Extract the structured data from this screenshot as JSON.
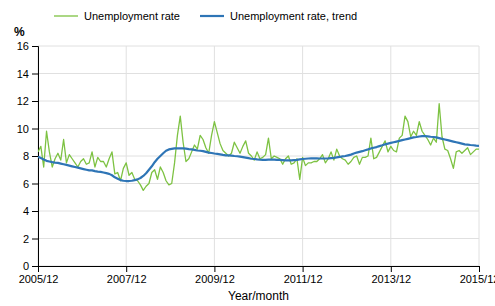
{
  "chart_data": {
    "type": "line",
    "xlabel": "Year/month",
    "ylabel": "%",
    "x": [
      0,
      0.7742,
      1.5484,
      2.3226,
      3.0968,
      3.871,
      4.6452,
      5.4194,
      6.1935,
      6.9677,
      7.7419,
      8.5161,
      9.2903,
      10.0645,
      10.8387,
      11.6129,
      12.3871,
      13.1613,
      13.9355,
      14.7097,
      15.4839,
      16.2581,
      17.0323,
      17.8065,
      18.5806,
      19.3548,
      20.129,
      20.9032,
      21.6774,
      22.4516,
      23.2258,
      24,
      24.7742,
      25.5484,
      26.3226,
      27.0968,
      27.871,
      28.6452,
      29.4194,
      30.1935,
      30.9677,
      31.7419,
      32.5161,
      33.2903,
      34.0645,
      34.8387,
      35.6129,
      36.3871,
      37.1613,
      37.9355,
      38.7097,
      39.4839,
      40.2581,
      41.0323,
      41.8065,
      42.5806,
      43.3548,
      44.129,
      44.9032,
      45.6774,
      46.4516,
      47.2258,
      48,
      48.7742,
      49.5484,
      50.3226,
      51.0968,
      51.871,
      52.6452,
      53.4194,
      54.1935,
      54.9677,
      55.7419,
      56.5161,
      57.2903,
      58.0645,
      58.8387,
      59.6129,
      60.3871,
      61.1613,
      61.9355,
      62.7097,
      63.4839,
      64.2581,
      65.0323,
      65.8065,
      66.5806,
      67.3548,
      68.129,
      68.9032,
      69.6774,
      70.4516,
      71.2258,
      72,
      72.7742,
      73.5484,
      74.3226,
      75.0968,
      75.871,
      76.6452,
      77.4194,
      78.1935,
      78.9677,
      79.7419,
      80.5161,
      81.2903,
      82.0645,
      82.8387,
      83.6129,
      84.3871,
      85.1613,
      85.9355,
      86.7097,
      87.4839,
      88.2581,
      89.0323,
      89.8065,
      90.5806,
      91.3548,
      92.129,
      92.9032,
      93.6774,
      94.4516,
      95.2258,
      96,
      96.7742,
      97.5484,
      98.3226,
      99.0968,
      99.871,
      100.6452,
      101.4194,
      102.1935,
      102.9677,
      103.7419,
      104.5161,
      105.2903,
      106.0645,
      106.8387,
      107.6129,
      108.3871,
      109.1613,
      109.9355,
      110.7097,
      111.4839,
      112.2581,
      113.0323,
      113.8065,
      114.5806,
      115.3548,
      116.129,
      116.9032,
      117.6774,
      118.4516,
      119.2258,
      120
    ],
    "xlim": [
      0,
      120
    ],
    "xticks": [
      {
        "value": 0,
        "label": "2005/12"
      },
      {
        "value": 24,
        "label": "2007/12"
      },
      {
        "value": 48,
        "label": "2009/12"
      },
      {
        "value": 72,
        "label": "2011/12"
      },
      {
        "value": 96,
        "label": "2013/12"
      },
      {
        "value": 120,
        "label": "2015/12"
      }
    ],
    "ylim": [
      0,
      16
    ],
    "yticks": [
      0,
      2,
      4,
      6,
      8,
      10,
      12,
      14,
      16
    ],
    "grid": true,
    "legend": "top",
    "series": [
      {
        "name": "Unemployment rate",
        "color": "#7dc242",
        "values": [
          8.3,
          8.7,
          7.2,
          9.8,
          8.3,
          7.2,
          7.8,
          8.2,
          7.7,
          9.2,
          7.5,
          8.1,
          7.8,
          7.5,
          7.2,
          7.6,
          7.8,
          7.4,
          7.5,
          8.3,
          7.2,
          7.9,
          7.6,
          7.6,
          7.2,
          7.8,
          8.3,
          6.7,
          6.8,
          6.2,
          7.1,
          7.5,
          6.6,
          6.8,
          6.3,
          6.2,
          5.9,
          5.5,
          5.8,
          6.0,
          6.8,
          7.0,
          6.3,
          7.2,
          6.8,
          6.2,
          5.9,
          6.0,
          7.5,
          9.5,
          10.9,
          9.0,
          7.6,
          7.8,
          8.3,
          8.8,
          8.5,
          9.5,
          9.2,
          8.6,
          8.2,
          9.5,
          10.5,
          9.7,
          8.9,
          8.4,
          8.2,
          8.0,
          8.2,
          9.0,
          8.6,
          8.2,
          8.7,
          9.1,
          8.2,
          8.0,
          7.7,
          8.3,
          7.8,
          7.9,
          8.1,
          9.3,
          7.8,
          8.0,
          7.9,
          7.8,
          7.4,
          7.8,
          8.0,
          7.4,
          7.5,
          7.8,
          6.3,
          7.9,
          7.3,
          7.5,
          7.5,
          7.6,
          7.6,
          7.8,
          8.1,
          7.5,
          7.8,
          8.3,
          7.7,
          8.5,
          8.0,
          7.8,
          7.7,
          7.4,
          7.6,
          7.9,
          8.0,
          7.4,
          7.9,
          7.9,
          8.0,
          9.3,
          7.8,
          7.9,
          8.3,
          8.7,
          9.1,
          8.3,
          8.7,
          8.4,
          8.3,
          9.3,
          9.5,
          10.9,
          10.5,
          9.4,
          9.8,
          9.5,
          10.5,
          9.8,
          9.5,
          9.2,
          8.8,
          9.3,
          9.0,
          11.8,
          9.4,
          8.5,
          8.4,
          7.8,
          7.1,
          8.3,
          8.4,
          8.2,
          8.4,
          8.6,
          8.1,
          8.3,
          8.5,
          8.5
        ]
      },
      {
        "name": "Unemployment rate, trend",
        "color": "#2e75b6",
        "values": [
          7.95,
          7.85,
          7.75,
          7.65,
          7.6,
          7.55,
          7.52,
          7.5,
          7.45,
          7.4,
          7.35,
          7.3,
          7.25,
          7.2,
          7.15,
          7.1,
          7.05,
          7.0,
          6.95,
          6.95,
          6.9,
          6.87,
          6.85,
          6.8,
          6.75,
          6.7,
          6.6,
          6.45,
          6.35,
          6.25,
          6.2,
          6.18,
          6.18,
          6.2,
          6.25,
          6.3,
          6.4,
          6.55,
          6.75,
          7.0,
          7.25,
          7.55,
          7.8,
          8.0,
          8.2,
          8.38,
          8.48,
          8.52,
          8.55,
          8.55,
          8.55,
          8.55,
          8.53,
          8.5,
          8.48,
          8.45,
          8.4,
          8.38,
          8.35,
          8.3,
          8.25,
          8.22,
          8.18,
          8.15,
          8.12,
          8.08,
          8.05,
          8.05,
          8.03,
          8.0,
          7.98,
          7.95,
          7.92,
          7.88,
          7.84,
          7.8,
          7.78,
          7.75,
          7.73,
          7.72,
          7.72,
          7.73,
          7.73,
          7.73,
          7.72,
          7.72,
          7.7,
          7.68,
          7.68,
          7.68,
          7.7,
          7.72,
          7.75,
          7.78,
          7.8,
          7.82,
          7.83,
          7.83,
          7.83,
          7.82,
          7.82,
          7.82,
          7.83,
          7.85,
          7.87,
          7.9,
          7.93,
          7.97,
          8.0,
          8.05,
          8.1,
          8.18,
          8.25,
          8.3,
          8.35,
          8.42,
          8.48,
          8.55,
          8.6,
          8.65,
          8.72,
          8.78,
          8.85,
          8.9,
          8.95,
          9.0,
          9.05,
          9.1,
          9.15,
          9.2,
          9.25,
          9.3,
          9.35,
          9.38,
          9.42,
          9.45,
          9.45,
          9.43,
          9.4,
          9.38,
          9.35,
          9.3,
          9.25,
          9.2,
          9.15,
          9.1,
          9.05,
          9.0,
          8.95,
          8.9,
          8.85,
          8.83,
          8.8,
          8.78,
          8.75,
          8.73
        ]
      }
    ]
  }
}
